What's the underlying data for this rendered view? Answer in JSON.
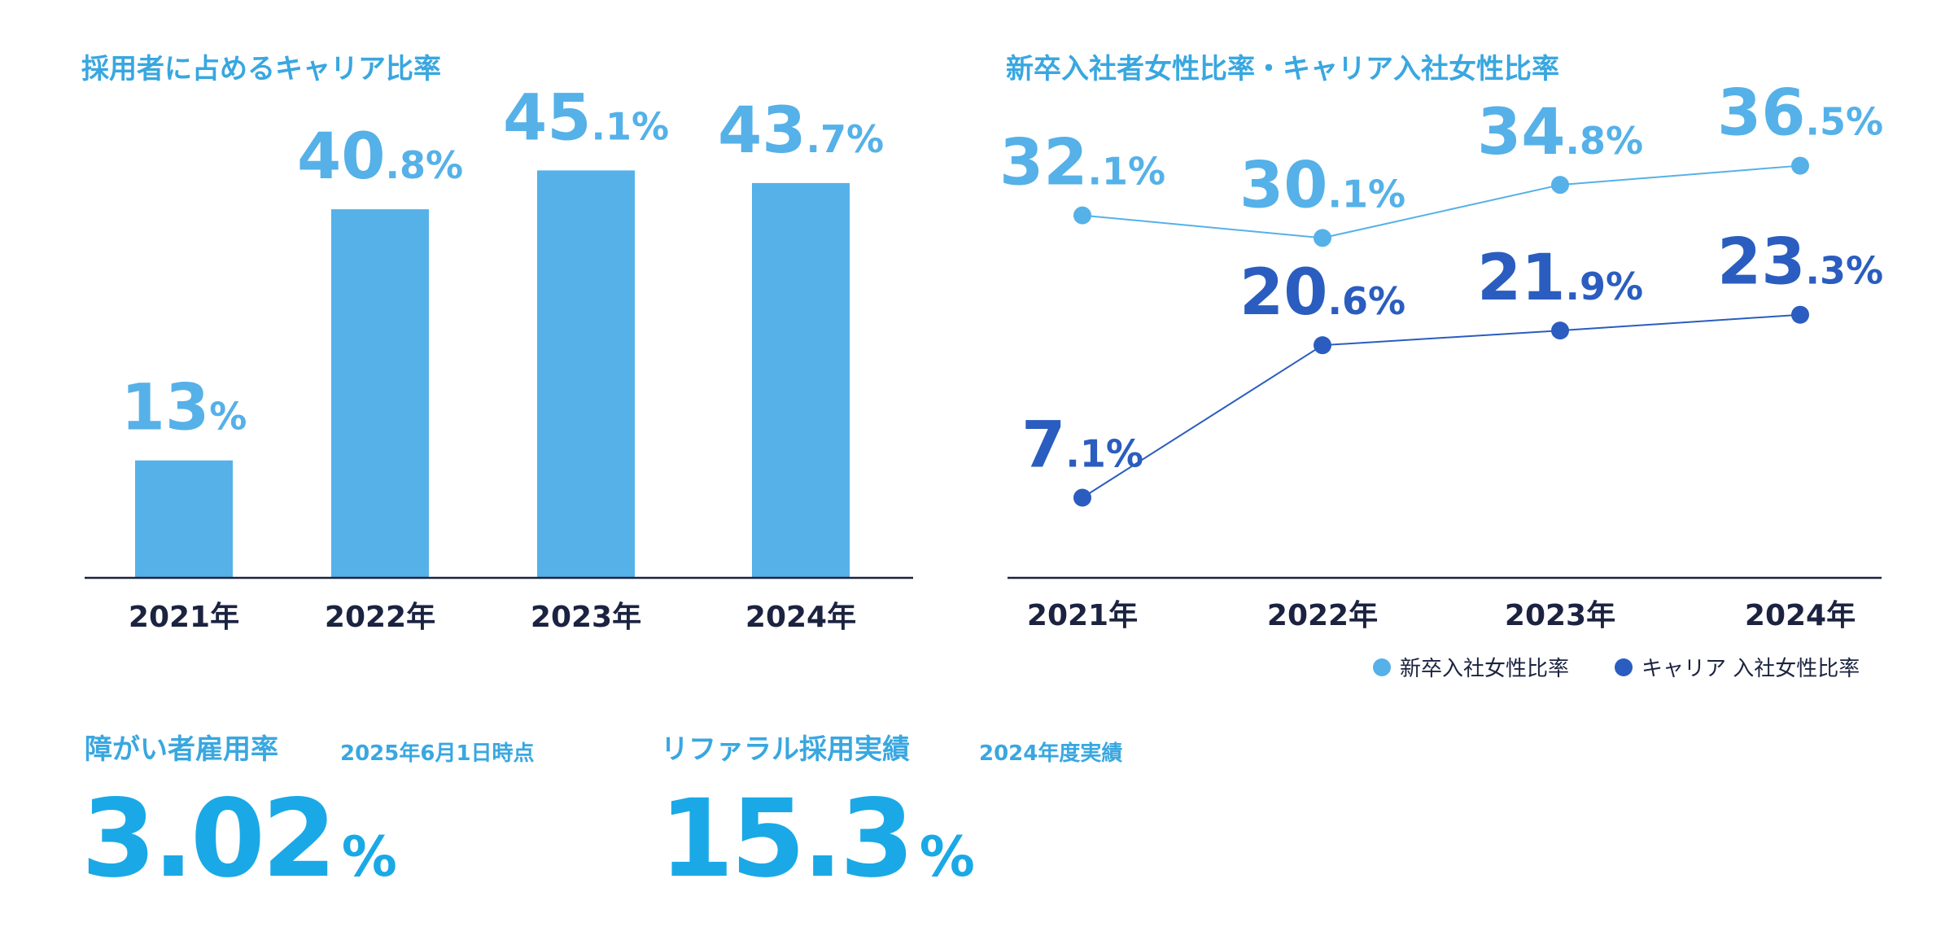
{
  "colors": {
    "heading": "#39a7e0",
    "bar": "#55b1e8",
    "light_series": "#55b1e8",
    "dark_series": "#2a5dbf",
    "axis": "#1b2340",
    "year_text": "#1b2340",
    "big_stat": "#1aa9e6"
  },
  "chart_data": [
    {
      "type": "bar",
      "title": "採用者に占めるキャリア比率",
      "categories": [
        "2021年",
        "2022年",
        "2023年",
        "2024年"
      ],
      "values": [
        13,
        40.8,
        45.1,
        43.7
      ],
      "value_labels": [
        {
          "int": "13",
          "dec": "",
          "pct": "%"
        },
        {
          "int": "40",
          "dec": ".8",
          "pct": "%"
        },
        {
          "int": "45",
          "dec": ".1",
          "pct": "%"
        },
        {
          "int": "43",
          "dec": ".7",
          "pct": "%"
        }
      ],
      "unit": "%",
      "ylim": [
        0,
        50
      ],
      "grid": false
    },
    {
      "type": "line",
      "title": "新卒入社者女性比率・キャリア入社女性比率",
      "categories": [
        "2021年",
        "2022年",
        "2023年",
        "2024年"
      ],
      "unit": "%",
      "ylim": [
        0,
        40
      ],
      "legend_position": "bottom-right",
      "grid": false,
      "series": [
        {
          "name": "新卒入社女性比率",
          "values": [
            32.1,
            30.1,
            34.8,
            36.5
          ],
          "value_labels": [
            {
              "int": "32",
              "dec": ".1",
              "pct": "%"
            },
            {
              "int": "30",
              "dec": ".1",
              "pct": "%"
            },
            {
              "int": "34",
              "dec": ".8",
              "pct": "%"
            },
            {
              "int": "36",
              "dec": ".5",
              "pct": "%"
            }
          ]
        },
        {
          "name": "キャリア 入社女性比率",
          "values": [
            7.1,
            20.6,
            21.9,
            23.3
          ],
          "value_labels": [
            {
              "int": "7",
              "dec": ".1",
              "pct": "%"
            },
            {
              "int": "20",
              "dec": ".6",
              "pct": "%"
            },
            {
              "int": "21",
              "dec": ".9",
              "pct": "%"
            },
            {
              "int": "23",
              "dec": ".3",
              "pct": "%"
            }
          ]
        }
      ]
    }
  ],
  "stats": {
    "disability": {
      "title": "障がい者雇用率",
      "note": "2025年6月1日時点",
      "value": "3.02",
      "unit": "%"
    },
    "referral": {
      "title": "リファラル採用実績",
      "note": "2024年度実績",
      "value": "15.3",
      "unit": "%"
    }
  }
}
